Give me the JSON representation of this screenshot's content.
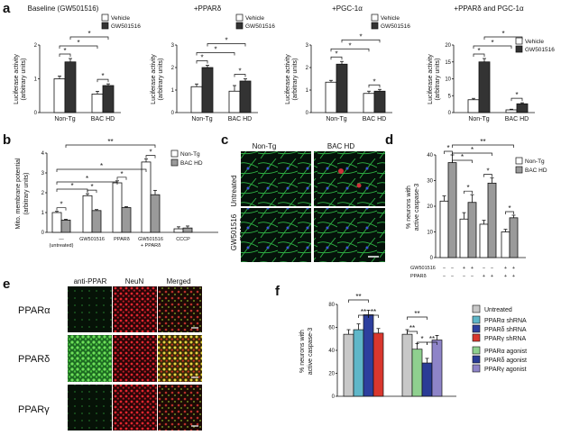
{
  "colors": {
    "white": "#ffffff",
    "dark": "#333333",
    "lightgray": "#cfcfcf",
    "gray": "#9a9a9a",
    "f_untreated": "#c8c8c8",
    "f_alpha_sh": "#5fb7c9",
    "f_delta_sh": "#2d3f9e",
    "f_gamma_sh": "#d9372e",
    "f_alpha_ag": "#8fd08f",
    "f_delta_ag": "#2a3c96",
    "f_gamma_ag": "#8e84c8",
    "micro_green": "#2f9e3a",
    "micro_red": "#c8232c",
    "micro_yellow": "#d8c43a"
  },
  "panel_labels": {
    "a": "a",
    "b": "b",
    "c": "c",
    "d": "d",
    "e": "e",
    "f": "f"
  },
  "panel_a": {
    "y_label_1": "Luciferase activity",
    "y_label_2": "(arbitrary units)",
    "legend_vehicle": "Vehicle",
    "legend_drug": "GW501516",
    "cat1": "Non-Tg",
    "cat2": "BAC HD",
    "star": "*",
    "subplots": [
      {
        "title": "Baseline (GW501516)",
        "ymax": 2,
        "ticks": [
          "0",
          "1",
          "2"
        ],
        "values": [
          [
            1.0,
            1.5
          ],
          [
            0.55,
            0.8
          ]
        ],
        "err": [
          [
            0.08,
            0.1
          ],
          [
            0.08,
            0.05
          ]
        ]
      },
      {
        "title": "+PPARδ",
        "ymax": 3,
        "ticks": [
          "0",
          "1",
          "2",
          "3"
        ],
        "values": [
          [
            1.15,
            2.0
          ],
          [
            0.95,
            1.4
          ]
        ],
        "err": [
          [
            0.12,
            0.1
          ],
          [
            0.25,
            0.1
          ]
        ]
      },
      {
        "title": "+PGC-1α",
        "ymax": 3,
        "ticks": [
          "0",
          "1",
          "2",
          "3"
        ],
        "values": [
          [
            1.35,
            2.15
          ],
          [
            0.85,
            0.95
          ]
        ],
        "err": [
          [
            0.08,
            0.12
          ],
          [
            0.1,
            0.08
          ]
        ]
      },
      {
        "title": "+PPARδ and PGC-1α",
        "ymax": 20,
        "ticks": [
          "0",
          "5",
          "10",
          "15",
          "20"
        ],
        "values": [
          [
            3.8,
            15.0
          ],
          [
            0.8,
            2.6
          ]
        ],
        "err": [
          [
            0.4,
            1.0
          ],
          [
            0.2,
            0.3
          ]
        ]
      }
    ]
  },
  "panel_b": {
    "y_label_1": "Mito. membrane potential",
    "y_label_2": "(arbitrary units)",
    "ticks": [
      "0",
      "1",
      "2",
      "3",
      "4"
    ],
    "ymax": 4,
    "legend": [
      "Non-Tg",
      "BAC HD"
    ],
    "categories": [
      "—",
      "GW501516",
      "PPARδ",
      "GW501516",
      "CCCP"
    ],
    "cat_sub": [
      "(untreated)",
      "",
      "",
      "+ PPARδ",
      ""
    ],
    "values": [
      [
        1.0,
        0.62
      ],
      [
        1.85,
        1.1
      ],
      [
        2.5,
        1.25
      ],
      [
        3.55,
        1.9
      ],
      [
        0.18,
        0.22
      ]
    ],
    "err": [
      [
        0.06,
        0.04
      ],
      [
        0.1,
        0.05
      ],
      [
        0.1,
        0.05
      ],
      [
        0.15,
        0.22
      ],
      [
        0.1,
        0.1
      ]
    ],
    "sig": [
      "*",
      "*",
      "*",
      "*",
      "*",
      "*",
      "**"
    ]
  },
  "panel_c": {
    "col1": "Non-Tg",
    "col2": "BAC HD",
    "row1": "Untreated",
    "row2a": "GW501516",
    "row2b": "+ PPARδ"
  },
  "panel_d": {
    "y_label_1": "% neurons with",
    "y_label_2": "active caspase-3",
    "ticks": [
      "0",
      "10",
      "20",
      "30",
      "40"
    ],
    "ymax": 40,
    "legend": [
      "Non-Tg",
      "BAC HD"
    ],
    "values": [
      [
        22,
        37
      ],
      [
        15,
        21.5
      ],
      [
        13,
        29
      ],
      [
        10,
        15.5
      ]
    ],
    "err": [
      [
        2,
        3
      ],
      [
        2.5,
        3
      ],
      [
        1.5,
        2
      ],
      [
        1,
        1
      ]
    ],
    "row1_label": "GW501516",
    "row2_label": "PPARδ",
    "row1": [
      "−",
      "−",
      "+",
      "+",
      "−",
      "−",
      "+",
      "+"
    ],
    "row2": [
      "−",
      "−",
      "−",
      "−",
      "+",
      "+",
      "+",
      "+"
    ],
    "sig": [
      "*",
      "*",
      "*",
      "*",
      "*",
      "*",
      "**"
    ]
  },
  "panel_e": {
    "col1": "anti-PPAR",
    "col2": "NeuN",
    "col3": "Merged",
    "rows": [
      "PPARα",
      "PPARδ",
      "PPARγ"
    ]
  },
  "panel_f": {
    "y_label_1": "% neurons with",
    "y_label_2": "active caspase-3",
    "ticks": [
      "0",
      "20",
      "40",
      "60",
      "80"
    ],
    "ymax": 80,
    "values_left": [
      54,
      58,
      71,
      55
    ],
    "err_left": [
      4,
      5,
      4,
      4
    ],
    "values_right": [
      54,
      41,
      29,
      49
    ],
    "err_right": [
      4,
      5,
      4,
      4
    ],
    "sig": [
      "**",
      "**",
      "**",
      "**",
      "**",
      "*",
      "**"
    ],
    "legend": [
      "Untreated",
      "PPARα shRNA",
      "PPARδ shRNA",
      "PPARγ shRNA",
      "PPARα agonist",
      "PPARδ agonist",
      "PPARγ agonist"
    ]
  }
}
